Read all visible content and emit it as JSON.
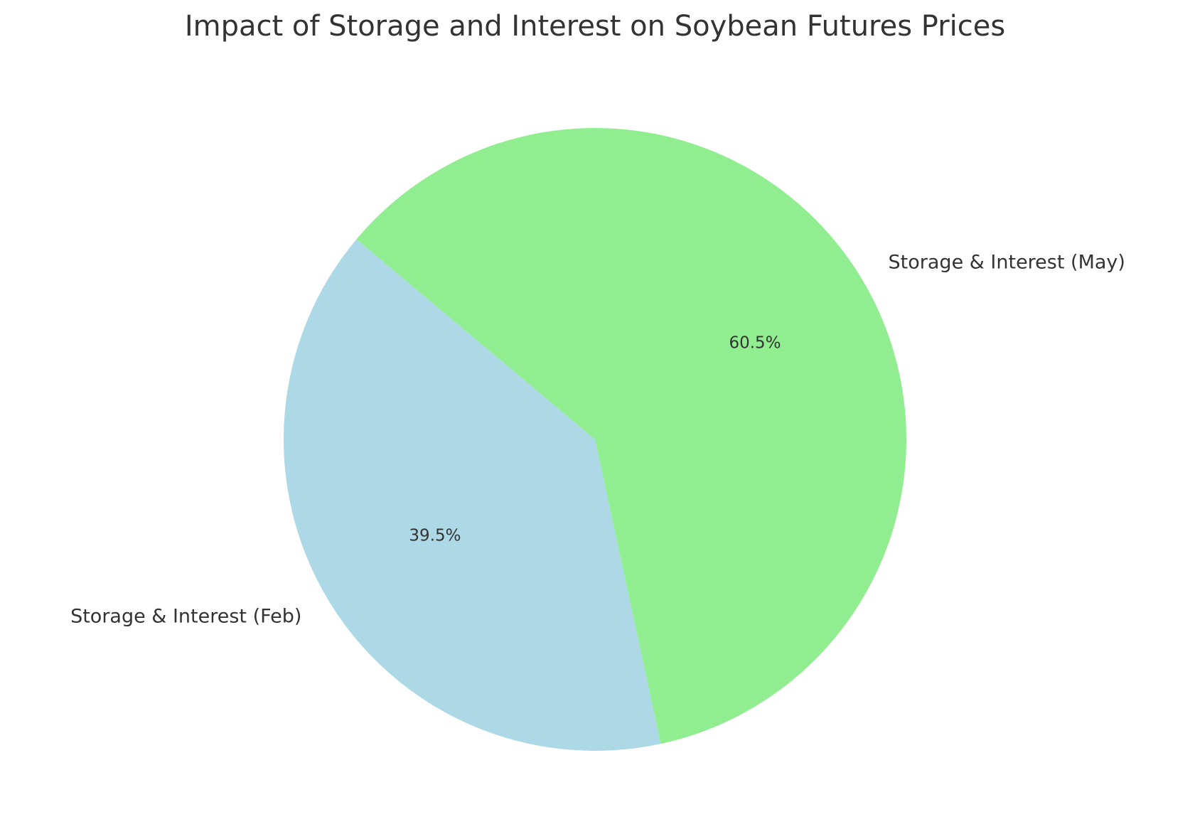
{
  "chart_data": {
    "type": "pie",
    "title": "Impact of Storage and Interest on Soybean Futures Prices",
    "slices": [
      {
        "label": "Storage & Interest (Feb)",
        "percent": 39.5,
        "percent_label": "39.5%",
        "color": "#add8e6"
      },
      {
        "label": "Storage & Interest (May)",
        "percent": 60.5,
        "percent_label": "60.5%",
        "color": "#90ee90"
      }
    ],
    "start_angle_deg": 140,
    "direction": "counterclockwise",
    "legend": "none"
  }
}
